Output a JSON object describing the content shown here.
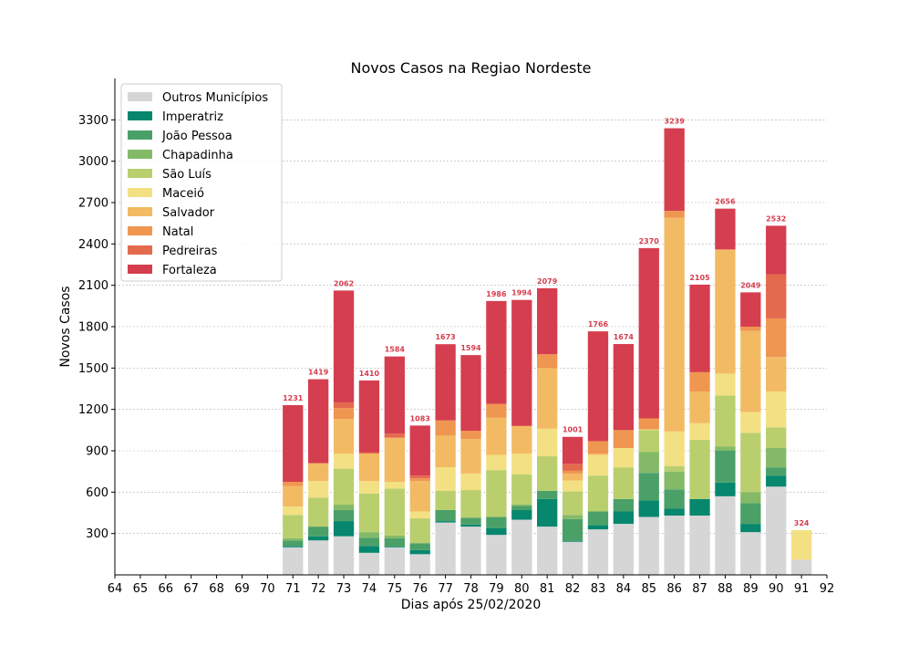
{
  "chart_data": {
    "type": "bar",
    "stacked": true,
    "title": "Novos Casos na Regiao Nordeste",
    "xlabel": "Dias após 25/02/2020",
    "ylabel": "Novos Casos",
    "xlim": [
      64,
      92
    ],
    "ylim": [
      0,
      3600
    ],
    "xticks": [
      "64",
      "65",
      "66",
      "67",
      "68",
      "69",
      "70",
      "71",
      "72",
      "73",
      "74",
      "75",
      "76",
      "77",
      "78",
      "79",
      "80",
      "81",
      "82",
      "83",
      "84",
      "85",
      "86",
      "87",
      "88",
      "89",
      "90",
      "91",
      "92"
    ],
    "yticks": [
      300,
      600,
      900,
      1200,
      1500,
      1800,
      2100,
      2400,
      2700,
      3000,
      3300
    ],
    "grid": "y",
    "legend_position": "top-left",
    "total_label_color": "#d53e4f",
    "x": [
      71,
      72,
      73,
      74,
      75,
      76,
      77,
      78,
      79,
      80,
      81,
      82,
      83,
      84,
      85,
      86,
      87,
      88,
      89,
      90,
      91
    ],
    "totals": [
      1231,
      1419,
      2062,
      1410,
      1584,
      1083,
      1673,
      1594,
      1986,
      1994,
      2079,
      1001,
      1766,
      1674,
      2370,
      3239,
      2105,
      2656,
      2049,
      2532,
      324
    ],
    "series": [
      {
        "name": "Outros Municípios",
        "color": "#d6d6d6",
        "values": [
          200,
          250,
          280,
          160,
          200,
          150,
          380,
          350,
          290,
          400,
          350,
          240,
          330,
          370,
          420,
          430,
          430,
          570,
          310,
          640,
          110
        ]
      },
      {
        "name": "Imperatriz",
        "color": "#06876e",
        "values": [
          10,
          30,
          110,
          50,
          5,
          30,
          10,
          15,
          50,
          70,
          200,
          5,
          30,
          90,
          120,
          50,
          120,
          100,
          60,
          80,
          0
        ]
      },
      {
        "name": "João Pessoa",
        "color": "#4ba068",
        "values": [
          40,
          70,
          80,
          60,
          60,
          50,
          80,
          50,
          80,
          30,
          60,
          160,
          100,
          90,
          200,
          140,
          0,
          230,
          150,
          60,
          0
        ]
      },
      {
        "name": "Chapadinha",
        "color": "#84ba67",
        "values": [
          15,
          0,
          40,
          40,
          20,
          0,
          0,
          0,
          0,
          10,
          0,
          30,
          0,
          0,
          150,
          130,
          0,
          30,
          80,
          140,
          0
        ]
      },
      {
        "name": "São Luís",
        "color": "#b9cf6e",
        "values": [
          170,
          210,
          260,
          280,
          340,
          180,
          140,
          200,
          340,
          220,
          250,
          170,
          260,
          230,
          160,
          40,
          430,
          370,
          430,
          150,
          0
        ]
      },
      {
        "name": "Maceió",
        "color": "#f3e082",
        "values": [
          60,
          120,
          110,
          90,
          50,
          50,
          170,
          120,
          110,
          150,
          200,
          80,
          150,
          140,
          5,
          250,
          120,
          160,
          150,
          260,
          214
        ]
      },
      {
        "name": "Salvador",
        "color": "#f3ba64",
        "values": [
          150,
          130,
          250,
          200,
          320,
          220,
          230,
          250,
          270,
          200,
          440,
          50,
          10,
          0,
          0,
          1550,
          230,
          900,
          590,
          250,
          0
        ]
      },
      {
        "name": "Natal",
        "color": "#ef9650",
        "values": [
          30,
          0,
          80,
          0,
          0,
          20,
          110,
          60,
          100,
          0,
          100,
          20,
          90,
          130,
          80,
          50,
          140,
          0,
          30,
          280,
          0
        ]
      },
      {
        "name": "Pedreiras",
        "color": "#e46a4d",
        "values": [
          0,
          0,
          40,
          10,
          30,
          20,
          0,
          0,
          0,
          0,
          0,
          50,
          0,
          0,
          0,
          0,
          0,
          0,
          0,
          320,
          0
        ]
      },
      {
        "name": "Fortaleza",
        "color": "#d53e4f",
        "values": [
          556,
          609,
          812,
          520,
          559,
          363,
          553,
          549,
          746,
          914,
          479,
          196,
          796,
          624,
          1235,
          599,
          635,
          296,
          249,
          352,
          0
        ]
      }
    ]
  }
}
